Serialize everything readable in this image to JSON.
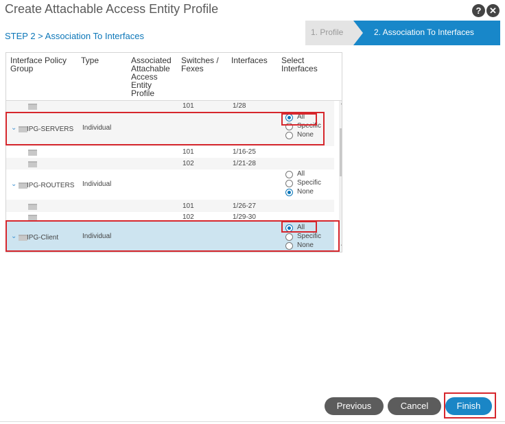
{
  "header": {
    "title": "Create Attachable Access Entity Profile",
    "help_icon": "?",
    "close_icon": "✕",
    "step_label": "STEP 2 > Association To Interfaces"
  },
  "wizard": {
    "step1": "1. Profile",
    "step2": "2. Association To Interfaces"
  },
  "table": {
    "headers": {
      "ipg": "Interface Policy Group",
      "type": "Type",
      "aaep": "Associated Attachable Access Entity Profile",
      "switches": "Switches / Fexes",
      "interfaces": "Interfaces",
      "select": "Select Interfaces"
    },
    "rows": [
      {
        "kind": "child",
        "switch": "101",
        "interfaces": "1/28"
      },
      {
        "kind": "group",
        "name": "IPG-SERVERS",
        "type": "Individual",
        "selected": "All"
      },
      {
        "kind": "child",
        "switch": "101",
        "interfaces": "1/16-25"
      },
      {
        "kind": "child",
        "switch": "102",
        "interfaces": "1/21-28"
      },
      {
        "kind": "group",
        "name": "IPG-ROUTERS",
        "type": "Individual",
        "selected": "None"
      },
      {
        "kind": "child",
        "switch": "101",
        "interfaces": "1/26-27"
      },
      {
        "kind": "child",
        "switch": "102",
        "interfaces": "1/29-30"
      },
      {
        "kind": "group",
        "name": "IPG-Client",
        "type": "Individual",
        "selected": "All"
      }
    ],
    "radio_options": [
      "All",
      "Specific",
      "None"
    ]
  },
  "buttons": {
    "previous": "Previous",
    "cancel": "Cancel",
    "finish": "Finish"
  },
  "colors": {
    "accent": "#1887c9",
    "highlight": "#d6262c",
    "selected_row": "#cde4f0"
  }
}
